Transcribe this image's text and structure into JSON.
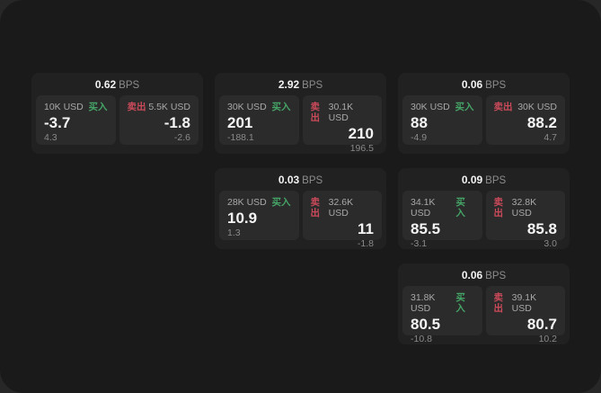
{
  "labels": {
    "bps_suffix": "BPS",
    "buy": "买入",
    "sell": "卖出"
  },
  "colors": {
    "window_bg": "#1a1a1a",
    "card_bg": "#212121",
    "panel_bg": "#2b2b2b",
    "buy_green": "#45a567",
    "sell_red": "#cb4a5a"
  },
  "cards": [
    {
      "row": 0,
      "col": 0,
      "bps": "0.62",
      "buy": {
        "amount": "10K USD",
        "value": "-3.7",
        "delta": "4.3"
      },
      "sell": {
        "amount": "5.5K USD",
        "value": "-1.8",
        "delta": "-2.6"
      }
    },
    {
      "row": 0,
      "col": 1,
      "bps": "2.92",
      "buy": {
        "amount": "30K USD",
        "value": "201",
        "delta": "-188.1"
      },
      "sell": {
        "amount": "30.1K USD",
        "value": "210",
        "delta": "196.5"
      }
    },
    {
      "row": 0,
      "col": 2,
      "bps": "0.06",
      "buy": {
        "amount": "30K USD",
        "value": "88",
        "delta": "-4.9"
      },
      "sell": {
        "amount": "30K USD",
        "value": "88.2",
        "delta": "4.7"
      }
    },
    {
      "row": 1,
      "col": 1,
      "bps": "0.03",
      "buy": {
        "amount": "28K USD",
        "value": "10.9",
        "delta": "1.3"
      },
      "sell": {
        "amount": "32.6K USD",
        "value": "11",
        "delta": "-1.8"
      }
    },
    {
      "row": 1,
      "col": 2,
      "bps": "0.09",
      "buy": {
        "amount": "34.1K USD",
        "value": "85.5",
        "delta": "-3.1"
      },
      "sell": {
        "amount": "32.8K USD",
        "value": "85.8",
        "delta": "3.0"
      }
    },
    {
      "row": 2,
      "col": 2,
      "bps": "0.06",
      "buy": {
        "amount": "31.8K USD",
        "value": "80.5",
        "delta": "-10.8"
      },
      "sell": {
        "amount": "39.1K USD",
        "value": "80.7",
        "delta": "10.2"
      }
    }
  ]
}
